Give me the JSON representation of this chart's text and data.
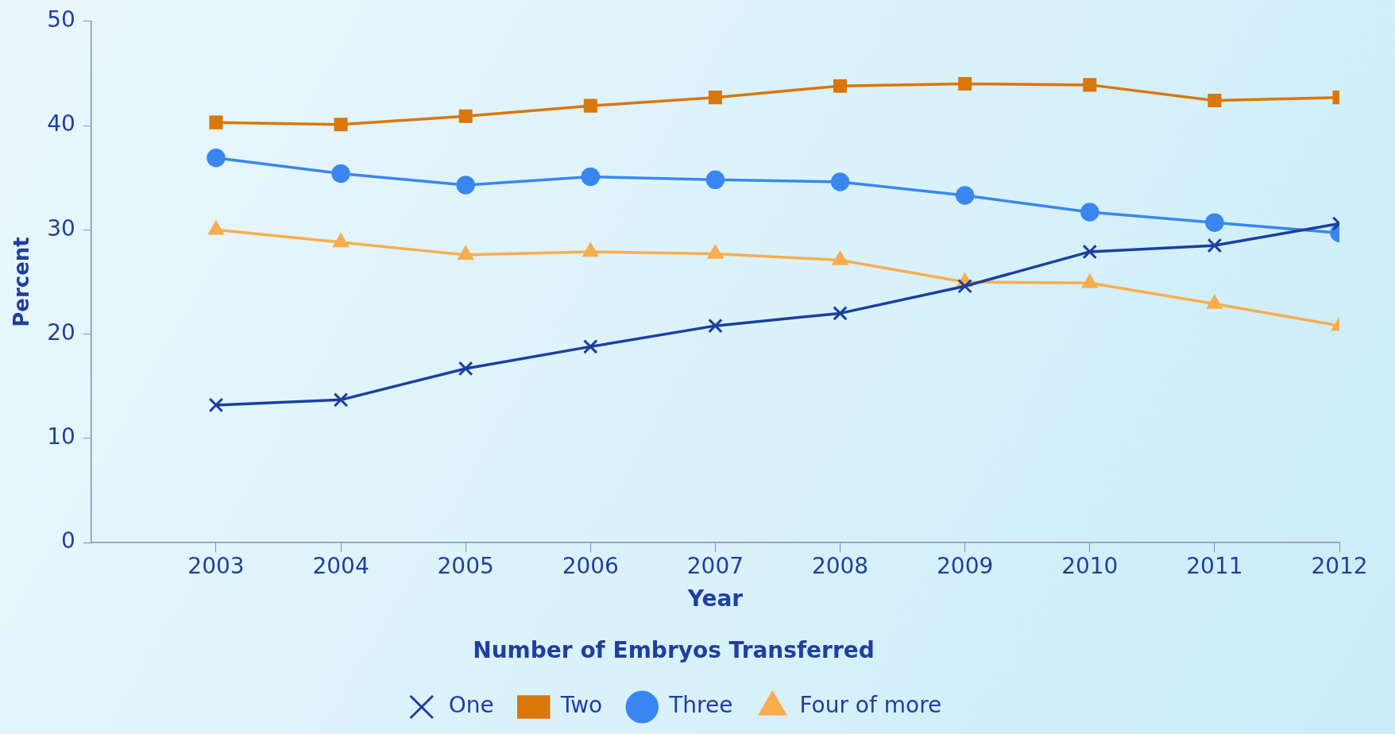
{
  "chart_data": {
    "type": "line",
    "xlabel": "Year",
    "ylabel": "Percent",
    "legend_title": "Number of Embryos Transferred",
    "legend": "bottom",
    "grid": false,
    "x": [
      2003,
      2004,
      2005,
      2006,
      2007,
      2008,
      2009,
      2010,
      2011,
      2012
    ],
    "xlim": [
      2002,
      2012
    ],
    "xticks": [
      2003,
      2004,
      2005,
      2006,
      2007,
      2008,
      2009,
      2010,
      2011,
      2012
    ],
    "ylim": [
      0,
      50
    ],
    "yticks": [
      0,
      10,
      20,
      30,
      40,
      50
    ],
    "series": [
      {
        "name": "One",
        "color": "#1b3fa0",
        "marker": "cross",
        "values": [
          13.2,
          13.7,
          16.7,
          18.8,
          20.8,
          22.0,
          24.6,
          27.9,
          28.5,
          30.6
        ]
      },
      {
        "name": "Two",
        "color": "#d9770a",
        "marker": "square",
        "values": [
          40.3,
          40.1,
          40.9,
          41.9,
          42.7,
          43.8,
          44.0,
          43.9,
          42.4,
          42.7
        ]
      },
      {
        "name": "Three",
        "color": "#3a86f0",
        "marker": "circle",
        "values": [
          36.9,
          35.4,
          34.3,
          35.1,
          34.8,
          34.6,
          33.3,
          31.7,
          30.7,
          29.7
        ]
      },
      {
        "name": "Four of more",
        "color": "#f9ad4e",
        "marker": "triangle",
        "values": [
          30.0,
          28.8,
          27.6,
          27.9,
          27.7,
          27.1,
          25.0,
          24.9,
          22.9,
          20.8
        ]
      }
    ]
  }
}
